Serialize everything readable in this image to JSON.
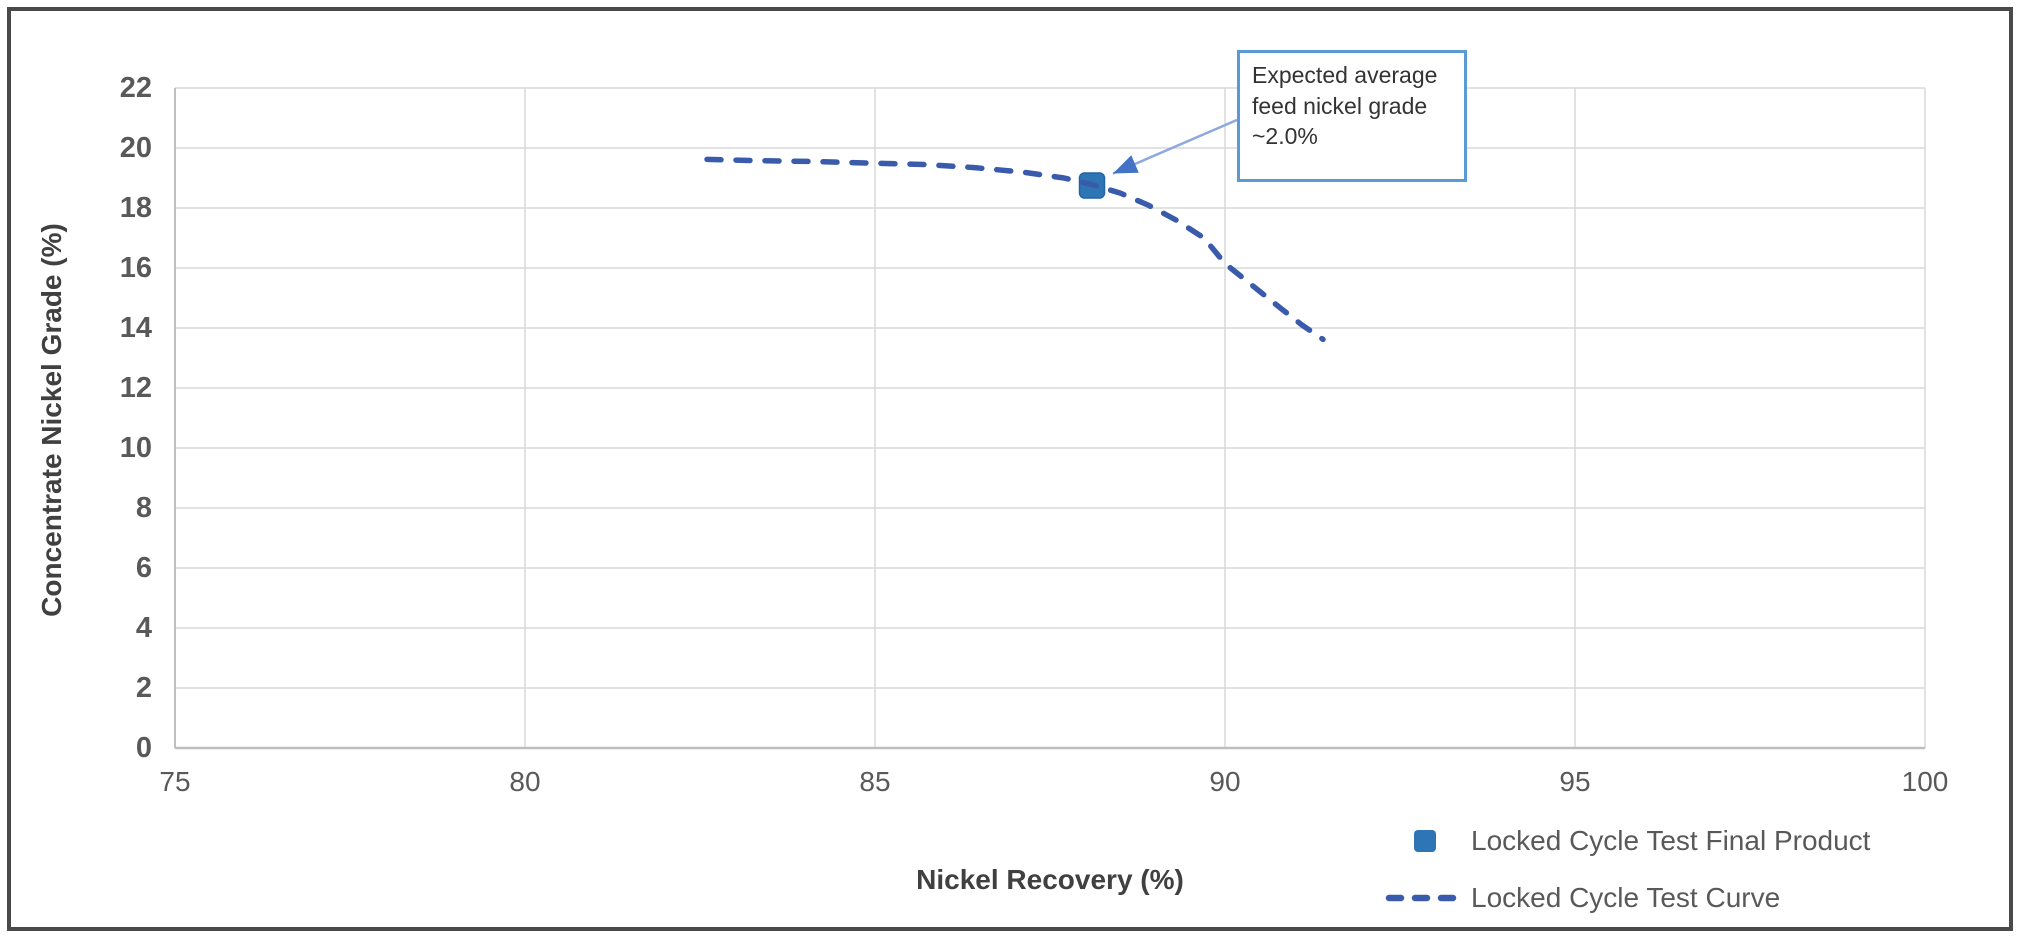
{
  "chart_data": {
    "type": "line",
    "xlabel": "Nickel Recovery (%)",
    "ylabel": "Concentrate Nickel Grade (%)",
    "xlim": [
      75,
      100
    ],
    "ylim": [
      0,
      22
    ],
    "xticks": [
      75,
      80,
      85,
      90,
      95,
      100
    ],
    "yticks": [
      0,
      2,
      4,
      6,
      8,
      10,
      12,
      14,
      16,
      18,
      20,
      22
    ],
    "grid": true,
    "legend_position": "bottom-right",
    "series": [
      {
        "name": "Locked Cycle Test Final Product",
        "type": "scatter",
        "marker": "square",
        "color": "#2E75B6",
        "points": [
          [
            88.1,
            18.75
          ]
        ]
      },
      {
        "name": "Locked Cycle Test Curve",
        "type": "line",
        "line_style": "dashed",
        "color": "#3A5BAC",
        "points": [
          [
            82.6,
            19.62
          ],
          [
            83.3,
            19.58
          ],
          [
            84.1,
            19.55
          ],
          [
            84.9,
            19.5
          ],
          [
            85.7,
            19.45
          ],
          [
            86.4,
            19.35
          ],
          [
            87.1,
            19.2
          ],
          [
            87.7,
            19.0
          ],
          [
            88.1,
            18.78
          ],
          [
            88.5,
            18.5
          ],
          [
            88.9,
            18.1
          ],
          [
            89.3,
            17.6
          ],
          [
            89.7,
            17.0
          ],
          [
            90.0,
            16.15
          ],
          [
            90.4,
            15.4
          ],
          [
            90.8,
            14.65
          ],
          [
            91.1,
            14.1
          ],
          [
            91.4,
            13.62
          ]
        ]
      }
    ],
    "annotation": {
      "text": "Expected average feed nickel grade ~2.0%",
      "target": [
        88.4,
        19.15
      ]
    }
  },
  "colors": {
    "background": "#FFFFFF",
    "grid": "#D9D9D9",
    "axis": "#BFBFBF",
    "tick_text": "#595959",
    "title_text": "#404040",
    "legend_text": "#595959",
    "curve": "#3A5BAC",
    "marker": "#2E75B6",
    "marker_edge": "#2463A6",
    "annotation_border": "#5B9BD5",
    "arrow_line": "#8EA9DB",
    "arrow_head": "#4472C4",
    "frame_border": "#4A4A4A"
  }
}
